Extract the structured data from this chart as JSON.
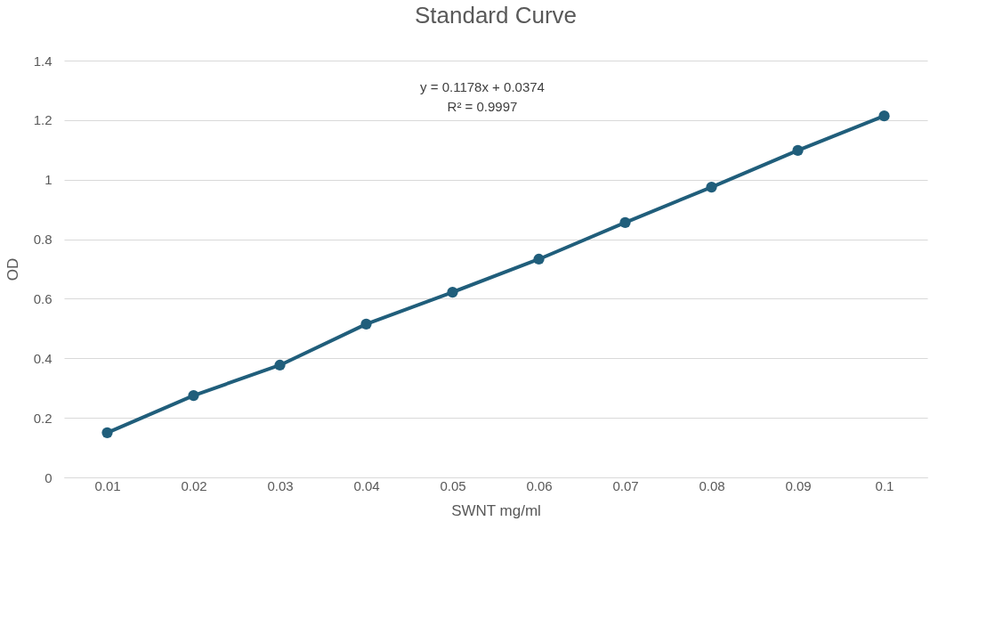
{
  "chart_data": {
    "type": "line",
    "title": "Standard Curve",
    "xlabel": "SWNT mg/ml",
    "ylabel": "OD",
    "categories": [
      "0.01",
      "0.02",
      "0.03",
      "0.04",
      "0.05",
      "0.06",
      "0.07",
      "0.08",
      "0.09",
      "0.1"
    ],
    "series": [
      {
        "color": "#205e7b",
        "values": [
          0.15,
          0.275,
          0.377,
          0.515,
          0.622,
          0.733,
          0.856,
          0.975,
          1.098,
          1.214
        ]
      }
    ],
    "ylim": [
      0,
      1.4
    ],
    "yticks": [
      0,
      0.2,
      0.4,
      0.6,
      0.8,
      1,
      1.2,
      1.4
    ],
    "annotations": [
      "y = 0.1178x + 0.0374",
      "R² = 0.9997"
    ],
    "grid": "y",
    "marker": "circle",
    "line_style": "solid"
  }
}
